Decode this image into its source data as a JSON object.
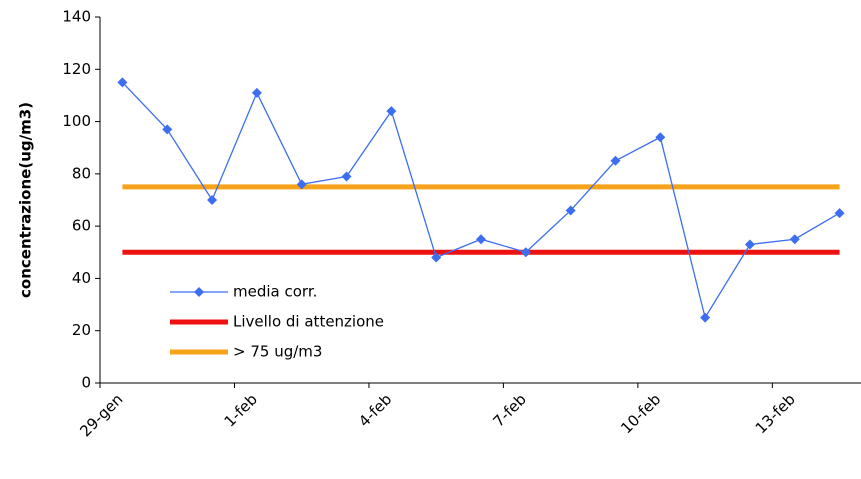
{
  "chart_data": {
    "type": "line",
    "y_label": "concentrazione(ug/m3)",
    "categories": [
      "29-gen",
      null,
      null,
      "1-feb",
      null,
      null,
      "4-feb",
      null,
      null,
      "7-feb",
      null,
      null,
      "10-feb",
      null,
      null,
      "13-feb",
      null
    ],
    "series": [
      {
        "name": "media corr.",
        "color": "#3d6ef0",
        "marker": "diamond",
        "values": [
          115,
          97,
          70,
          111,
          76,
          79,
          104,
          48,
          55,
          50,
          66,
          85,
          94,
          25,
          53,
          55,
          65
        ]
      },
      {
        "name": "Livello di attenzione",
        "color": "#ee1111",
        "values": [
          50,
          50,
          50,
          50,
          50,
          50,
          50,
          50,
          50,
          50,
          50,
          50,
          50,
          50,
          50,
          50,
          50
        ]
      },
      {
        "name": "> 75 ug/m3",
        "color": "#f7a21b",
        "values": [
          75,
          75,
          75,
          75,
          75,
          75,
          75,
          75,
          75,
          75,
          75,
          75,
          75,
          75,
          75,
          75,
          75
        ]
      }
    ],
    "ylim": [
      0,
      140
    ],
    "yticks": [
      0,
      20,
      40,
      60,
      80,
      100,
      120,
      140
    ]
  }
}
